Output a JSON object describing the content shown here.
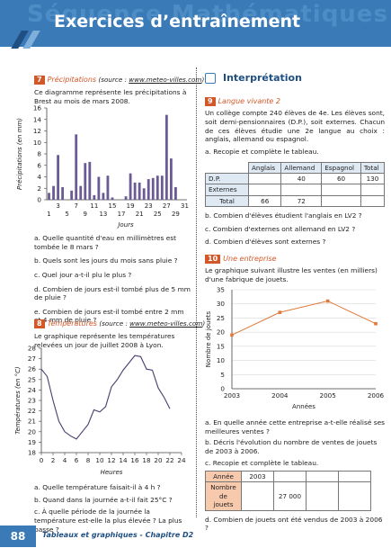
{
  "header": {
    "title": "Exercices d’entraînement",
    "ghost": "Séquence Mathématiques"
  },
  "footer": {
    "page": "88",
    "chapter": "Tableaux et graphiques - Chapitre D2"
  },
  "ex7": {
    "num": "7",
    "title": "Précipitations",
    "source_prefix": "(source : ",
    "source_url": "www.meteo-villes.com",
    "source_suffix": ")",
    "intro": "Ce diagramme représente les précipitations à Brest au mois de mars 2008.",
    "qa": "a. Quelle quantité d'eau en millimètres est tombée le 8 mars ?",
    "qb": "b. Quels sont les jours du mois sans pluie ?",
    "qc": "c. Quel jour a-t-il plu le plus ?",
    "qd": "d. Combien de jours est-il tombé plus de 5 mm de pluie ?",
    "qe": "e. Combien de jours est-il tombé entre 2 mm et 4 mm de pluie ?"
  },
  "ex8": {
    "num": "8",
    "title": "Températures",
    "source_prefix": "(source : ",
    "source_url": "www.meteo-villes.com",
    "source_suffix": ")",
    "intro": "Le graphique représente les températures relevées un jour de juillet 2008 à Lyon.",
    "qa": "a. Quelle température faisait-il à 4 h ?",
    "qb": "b. Quand dans la journée a-t-il fait 25°C ?",
    "qc": "c. À quelle période de la journée la température est-elle la plus élevée ? La plus basse ?"
  },
  "interpretation": {
    "title": "Interprétation"
  },
  "ex9": {
    "num": "9",
    "title": "Langue vivante 2",
    "intro": "Un collège compte 240 élèves de 4e. Les élèves sont, soit demi-pensionnaires (D.P.), soit externes. Chacun de ces élèves étudie une 2e langue au choix : anglais, allemand ou espagnol.",
    "qa": "a. Recopie et complète le tableau.",
    "table": {
      "headers": [
        "Anglais",
        "Allemand",
        "Espagnol",
        "Total"
      ],
      "rows": [
        {
          "label": "D.P.",
          "cells": [
            "",
            "40",
            "60",
            "130"
          ]
        },
        {
          "label": "Externes",
          "cells": [
            "",
            "",
            "",
            ""
          ]
        },
        {
          "label": "Total",
          "cells": [
            "66",
            "72",
            "",
            ""
          ]
        }
      ]
    },
    "qb": "b. Combien d'élèves étudient l'anglais en LV2 ?",
    "qc": "c. Combien d'externes ont allemand en LV2 ?",
    "qd": "d. Combien d'élèves sont externes ?"
  },
  "ex10": {
    "num": "10",
    "title": "Une entreprise",
    "intro": "Le graphique suivant illustre les ventes (en milliers) d'une fabrique de jouets.",
    "qa": "a. En quelle année cette entreprise a-t-elle réalisé ses meilleures ventes ?",
    "qb": "b. Décris l'évolution du nombre de ventes de jouets de 2003 à 2006.",
    "qc": "c. Recopie et complète le tableau.",
    "table": {
      "row1_label": "Année",
      "row1_value": "2003",
      "row2_label": "Nombre de jouets",
      "row2_value": "27 000"
    },
    "qd": "d. Combien de jouets ont été vendus de 2003 à 2006 ?"
  },
  "chart_data": [
    {
      "type": "bar",
      "title": "",
      "ylabel": "Précipitations (en mm)",
      "xlabel": "Jours",
      "ylim": [
        0,
        16
      ],
      "yticks": [
        0,
        2,
        4,
        6,
        8,
        10,
        12,
        14,
        16
      ],
      "xticks_top": [
        "3",
        "7",
        "11",
        "15",
        "19",
        "23",
        "27",
        "31"
      ],
      "xticks_bottom": [
        "1",
        "5",
        "9",
        "13",
        "17",
        "21",
        "25",
        "29"
      ],
      "color": "#6b5b95",
      "categories": [
        1,
        2,
        3,
        4,
        5,
        6,
        7,
        8,
        9,
        10,
        11,
        12,
        13,
        14,
        15,
        16,
        17,
        18,
        19,
        20,
        21,
        22,
        23,
        24,
        25,
        26,
        27,
        28,
        29,
        30,
        31
      ],
      "values": [
        1.2,
        2.4,
        7.8,
        2.2,
        0,
        1.6,
        11.4,
        2.4,
        6.4,
        6.6,
        0.8,
        4.0,
        1.2,
        4.2,
        0.4,
        0,
        0,
        0.6,
        4.6,
        3.0,
        3.0,
        2.0,
        3.6,
        3.8,
        4.2,
        4.2,
        14.8,
        7.2,
        2.2,
        0,
        0
      ]
    },
    {
      "type": "line",
      "title": "",
      "ylabel": "Températures (en °C)",
      "xlabel": "Heures",
      "ylim": [
        18,
        28
      ],
      "xlim": [
        0,
        24
      ],
      "yticks": [
        18,
        19,
        20,
        21,
        22,
        23,
        24,
        25,
        26,
        27,
        28
      ],
      "xticks": [
        0,
        2,
        4,
        6,
        8,
        10,
        12,
        14,
        16,
        18,
        20,
        22,
        24
      ],
      "color": "#4a3c6e",
      "x": [
        0,
        1,
        2,
        3,
        4,
        5,
        6,
        7,
        8,
        9,
        10,
        11,
        12,
        13,
        14,
        15,
        16,
        17,
        18,
        19,
        20,
        21,
        22
      ],
      "y": [
        26.0,
        25.3,
        23.0,
        21.0,
        20.0,
        19.6,
        19.3,
        20.0,
        20.7,
        22.1,
        21.9,
        22.4,
        24.3,
        25.0,
        25.9,
        26.6,
        27.3,
        27.2,
        26.0,
        25.9,
        24.2,
        23.3,
        22.2
      ]
    },
    {
      "type": "line",
      "title": "",
      "ylabel": "Nombre de jouets",
      "xlabel": "Années",
      "ylim": [
        0,
        35
      ],
      "yticks": [
        0,
        5,
        10,
        15,
        20,
        25,
        30,
        35
      ],
      "xticks": [
        2003,
        2004,
        2005,
        2006
      ],
      "color": "#e07a3a",
      "x": [
        2003,
        2004,
        2005,
        2006
      ],
      "y": [
        19,
        27,
        31,
        23
      ]
    }
  ]
}
